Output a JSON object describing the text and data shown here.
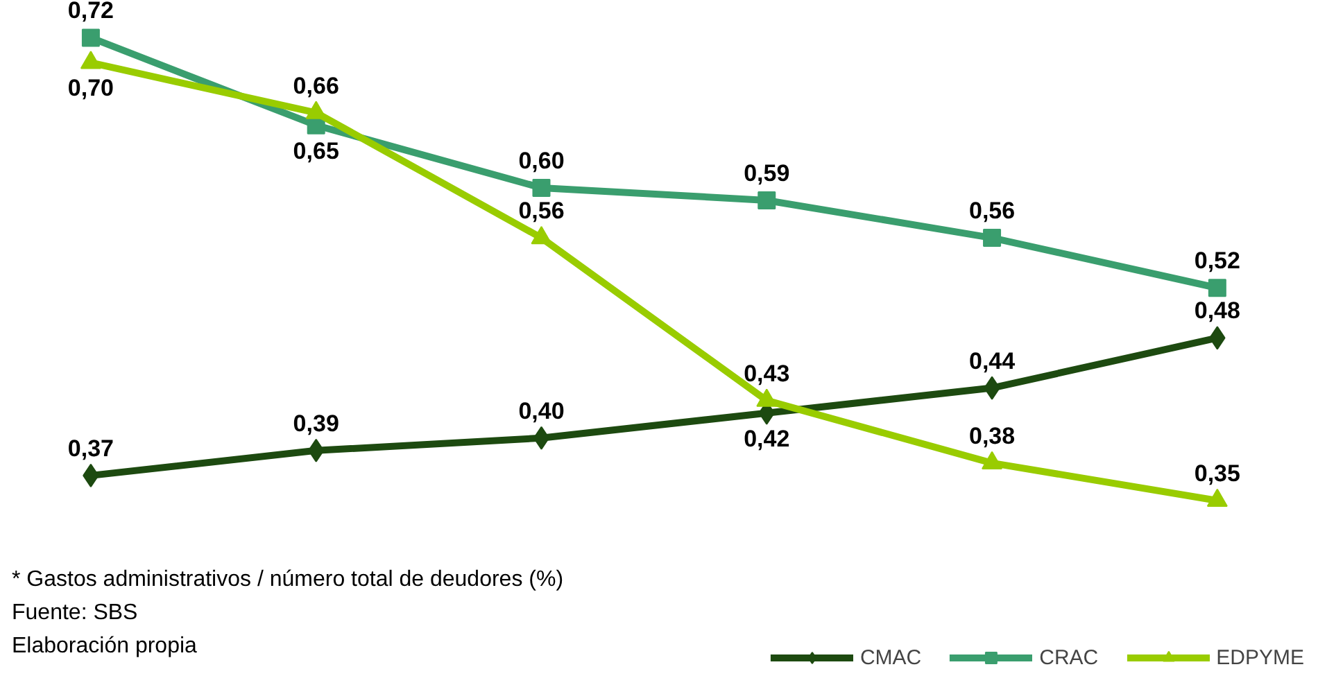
{
  "chart_data": {
    "type": "line",
    "categories": [
      null,
      null,
      null,
      null,
      null,
      null
    ],
    "series": [
      {
        "name": "CMAC",
        "color": "#1d4a10",
        "marker": "diamond",
        "values": [
          0.37,
          0.39,
          0.4,
          0.42,
          0.44,
          0.48
        ],
        "value_labels": [
          "0,37",
          "0,39",
          "0,40",
          "0,42",
          "0,44",
          "0,48"
        ]
      },
      {
        "name": "CRAC",
        "color": "#3a9e6e",
        "marker": "square",
        "values": [
          0.72,
          0.65,
          0.6,
          0.59,
          0.56,
          0.52
        ],
        "value_labels": [
          "0,72",
          "0,65",
          "0,60",
          "0,59",
          "0,56",
          "0,52"
        ]
      },
      {
        "name": "EDPYME",
        "color": "#99cc00",
        "marker": "triangle",
        "values": [
          0.7,
          0.66,
          0.56,
          0.43,
          0.38,
          0.35
        ],
        "value_labels": [
          "0,70",
          "0,66",
          "0,56",
          "0,43",
          "0,38",
          "0,35"
        ]
      }
    ],
    "legend": "bottom right",
    "line_style": "solid",
    "annotations": [
      "* Gastos administrativos  / número total de deudores (%)",
      "Fuente: SBS",
      "Elaboración propia"
    ]
  }
}
